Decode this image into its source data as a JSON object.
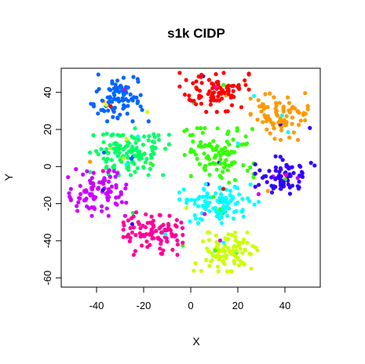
{
  "chart_data": {
    "type": "scatter",
    "title": "s1k CIDP",
    "xlabel": "X",
    "ylabel": "Y",
    "xlim": [
      -55,
      55
    ],
    "ylim": [
      -65,
      53
    ],
    "x_ticks": [
      -40,
      -20,
      0,
      20,
      40
    ],
    "y_ticks": [
      -60,
      -40,
      -20,
      0,
      20,
      40
    ],
    "x_tick_labels": [
      "-40",
      "-20",
      "0",
      "20",
      "40"
    ],
    "y_tick_labels": [
      "-60",
      "-40",
      "-20",
      "0",
      "20",
      "40"
    ],
    "grid": false,
    "legend": "none",
    "clusters": [
      {
        "color": "#0066ff",
        "center": [
          -30,
          37
        ],
        "spread": [
          6,
          6
        ],
        "n": 95
      },
      {
        "color": "#ff0000",
        "center": [
          10,
          40
        ],
        "spread": [
          7,
          5
        ],
        "n": 90
      },
      {
        "color": "#ff9900",
        "center": [
          38,
          27
        ],
        "spread": [
          6,
          6
        ],
        "n": 90
      },
      {
        "color": "#00ff66",
        "center": [
          -26,
          8
        ],
        "spread": [
          8,
          6
        ],
        "n": 140
      },
      {
        "color": "#33ff00",
        "center": [
          12,
          6
        ],
        "spread": [
          7,
          7
        ],
        "n": 105
      },
      {
        "color": "#3300ff",
        "center": [
          40,
          -5
        ],
        "spread": [
          6,
          5
        ],
        "n": 80
      },
      {
        "color": "#cc00ff",
        "center": [
          -40,
          -14
        ],
        "spread": [
          6,
          6
        ],
        "n": 95
      },
      {
        "color": "#00ffff",
        "center": [
          12,
          -20
        ],
        "spread": [
          8,
          5
        ],
        "n": 110
      },
      {
        "color": "#ff0099",
        "center": [
          -16,
          -35
        ],
        "spread": [
          6,
          6
        ],
        "n": 100
      },
      {
        "color": "#ccff00",
        "center": [
          16,
          -46
        ],
        "spread": [
          7,
          5
        ],
        "n": 95
      }
    ]
  }
}
